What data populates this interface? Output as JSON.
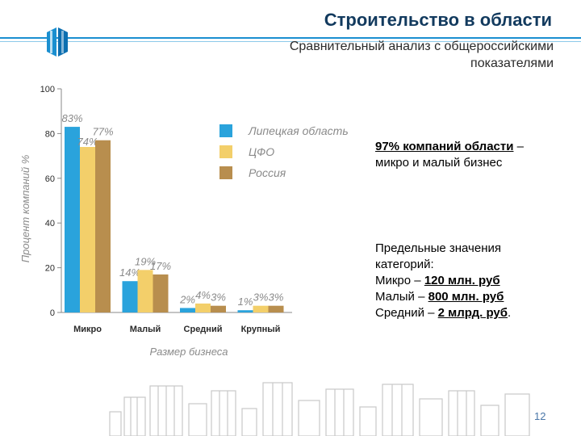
{
  "slide": {
    "title": "Строительство в области",
    "subtitle_line1": "Сравнительный анализ с общероссийскими",
    "subtitle_line2": "показателями",
    "page_number": "12"
  },
  "notes": {
    "note1_bold": "97% компаний области",
    "note1_rest_a": " –",
    "note1_rest_b": "микро и малый бизнес",
    "limits_intro_1": "Предельные значения",
    "limits_intro_2": "категорий:",
    "micro_prefix": "Микро – ",
    "micro_value": "120 млн. руб",
    "small_prefix": "Малый – ",
    "small_value": "800 млн. руб",
    "medium_prefix": "Средний – ",
    "medium_value": "2 млрд. руб",
    "medium_suffix": "."
  },
  "colors": {
    "region": "#2aa3dc",
    "cfo": "#f3cf6a",
    "russia": "#b88e4e",
    "axis": "#8a8a8a",
    "text": "#2a2a2a"
  },
  "chart_data": {
    "type": "bar",
    "xlabel": "Размер бизнеса",
    "ylabel": "Процент компаний %",
    "ylim": [
      0,
      100
    ],
    "yticks": [
      0,
      20,
      40,
      60,
      80,
      100
    ],
    "grid": false,
    "legend_position": "right",
    "categories": [
      "Микро",
      "Малый",
      "Средний",
      "Крупный"
    ],
    "series": [
      {
        "name": "Липецкая область",
        "values": [
          83,
          14,
          2,
          1
        ],
        "labels": [
          "83%",
          "14%",
          "2%",
          "1%"
        ]
      },
      {
        "name": "ЦФО",
        "values": [
          74,
          19,
          4,
          3
        ],
        "labels": [
          "74%",
          "19%",
          "4%",
          "3%"
        ]
      },
      {
        "name": "Россия",
        "values": [
          77,
          17,
          3,
          3
        ],
        "labels": [
          "77%",
          "17%",
          "3%",
          "3%"
        ]
      }
    ]
  }
}
